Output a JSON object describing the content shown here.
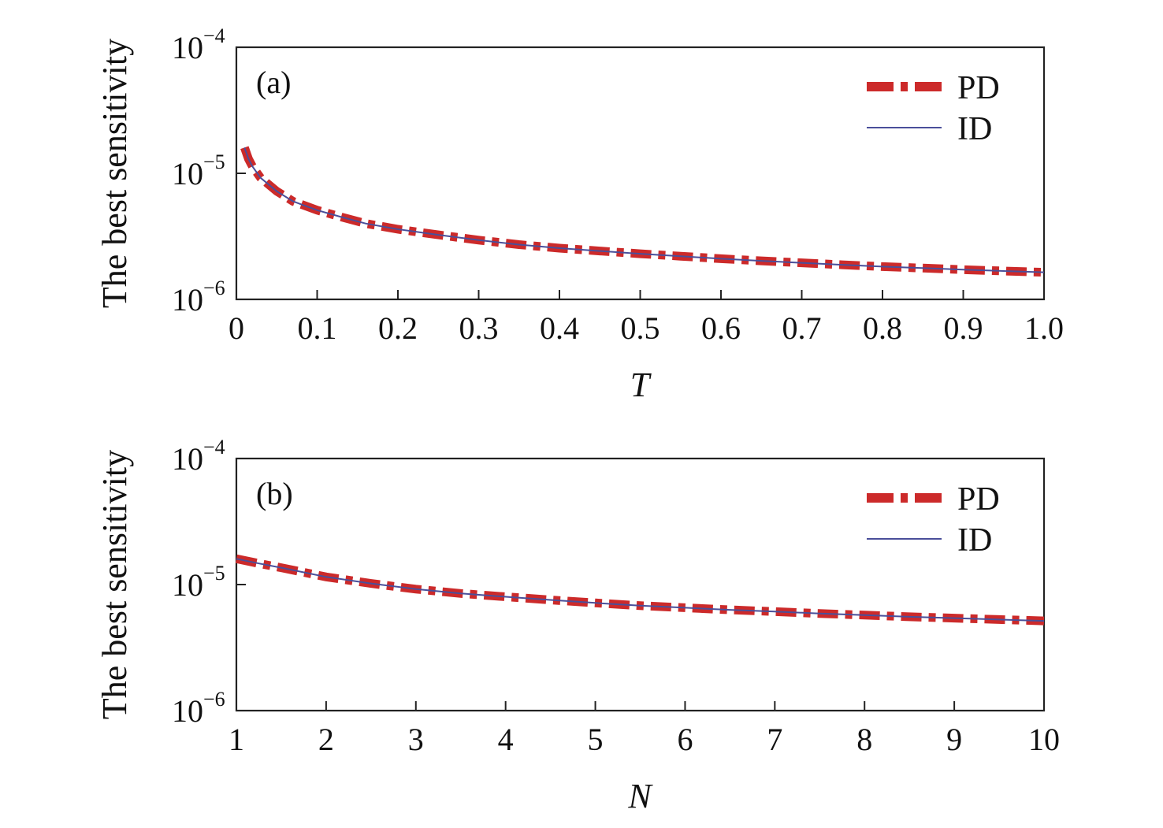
{
  "chart_data": [
    {
      "type": "line",
      "panel_label": "(a)",
      "xlabel": "T",
      "ylabel": "The best sensitivity",
      "xlim": [
        0,
        1.0
      ],
      "ylim": [
        1e-06,
        0.0001
      ],
      "yscale": "log",
      "xticks": [
        "0",
        "0.1",
        "0.2",
        "0.3",
        "0.4",
        "0.5",
        "0.6",
        "0.7",
        "0.8",
        "0.9",
        "1.0"
      ],
      "xtick_values": [
        0,
        0.1,
        0.2,
        0.3,
        0.4,
        0.5,
        0.6,
        0.7,
        0.8,
        0.9,
        1.0
      ],
      "yticks": [
        {
          "base": "10",
          "exp": "−6",
          "value": 1e-06
        },
        {
          "base": "10",
          "exp": "−5",
          "value": 1e-05
        },
        {
          "base": "10",
          "exp": "−4",
          "value": 0.0001
        }
      ],
      "legend_position": "top-right",
      "grid": false,
      "x": [
        0.01,
        0.015,
        0.02,
        0.03,
        0.05,
        0.07,
        0.1,
        0.13,
        0.16,
        0.2,
        0.25,
        0.3,
        0.35,
        0.4,
        0.45,
        0.5,
        0.55,
        0.6,
        0.65,
        0.7,
        0.75,
        0.8,
        0.85,
        0.9,
        0.95,
        1.0
      ],
      "series": [
        {
          "name": "PD",
          "color": "#cc2a2a",
          "style": "dash-dot-thick",
          "values": [
            1.6e-05,
            1.3e-05,
            1.13e-05,
            9.2e-06,
            7.2e-06,
            6e-06,
            5.1e-06,
            4.5e-06,
            4e-06,
            3.6e-06,
            3.25e-06,
            2.95e-06,
            2.72e-06,
            2.55e-06,
            2.42e-06,
            2.3e-06,
            2.2e-06,
            2.1e-06,
            2.02e-06,
            1.95e-06,
            1.88e-06,
            1.82e-06,
            1.77e-06,
            1.72e-06,
            1.68e-06,
            1.64e-06
          ]
        },
        {
          "name": "ID",
          "color": "#4a4f9a",
          "style": "solid-thin",
          "values": [
            1.6e-05,
            1.3e-05,
            1.13e-05,
            9.2e-06,
            7.2e-06,
            6e-06,
            5.1e-06,
            4.5e-06,
            4e-06,
            3.6e-06,
            3.25e-06,
            2.95e-06,
            2.72e-06,
            2.55e-06,
            2.42e-06,
            2.3e-06,
            2.2e-06,
            2.1e-06,
            2.02e-06,
            1.95e-06,
            1.88e-06,
            1.82e-06,
            1.77e-06,
            1.72e-06,
            1.68e-06,
            1.64e-06
          ]
        }
      ]
    },
    {
      "type": "line",
      "panel_label": "(b)",
      "xlabel": "N",
      "ylabel": "The best sensitivity",
      "xlim": [
        1,
        10
      ],
      "ylim": [
        1e-06,
        0.0001
      ],
      "yscale": "log",
      "xticks": [
        "1",
        "2",
        "3",
        "4",
        "5",
        "6",
        "7",
        "8",
        "9",
        "10"
      ],
      "xtick_values": [
        1,
        2,
        3,
        4,
        5,
        6,
        7,
        8,
        9,
        10
      ],
      "yticks": [
        {
          "base": "10",
          "exp": "−6",
          "value": 1e-06
        },
        {
          "base": "10",
          "exp": "−5",
          "value": 1e-05
        },
        {
          "base": "10",
          "exp": "−4",
          "value": 0.0001
        }
      ],
      "legend_position": "top-right",
      "grid": false,
      "x": [
        1,
        1.25,
        1.5,
        2,
        2.5,
        3,
        3.5,
        4,
        4.5,
        5,
        5.5,
        6,
        6.5,
        7,
        7.5,
        8,
        8.5,
        9,
        9.5,
        10
      ],
      "series": [
        {
          "name": "PD",
          "color": "#cc2a2a",
          "style": "dash-dot-thick",
          "values": [
            1.6e-05,
            1.47e-05,
            1.36e-05,
            1.15e-05,
            1.02e-05,
            9.2e-06,
            8.5e-06,
            8e-06,
            7.55e-06,
            7.15e-06,
            6.8e-06,
            6.55e-06,
            6.3e-06,
            6.1e-06,
            5.9e-06,
            5.72e-06,
            5.55e-06,
            5.42e-06,
            5.28e-06,
            5.15e-06
          ]
        },
        {
          "name": "ID",
          "color": "#4a4f9a",
          "style": "solid-thin",
          "values": [
            1.6e-05,
            1.47e-05,
            1.36e-05,
            1.15e-05,
            1.02e-05,
            9.2e-06,
            8.5e-06,
            8e-06,
            7.55e-06,
            7.15e-06,
            6.8e-06,
            6.55e-06,
            6.3e-06,
            6.1e-06,
            5.9e-06,
            5.72e-06,
            5.55e-06,
            5.42e-06,
            5.28e-06,
            5.15e-06
          ]
        }
      ]
    }
  ]
}
